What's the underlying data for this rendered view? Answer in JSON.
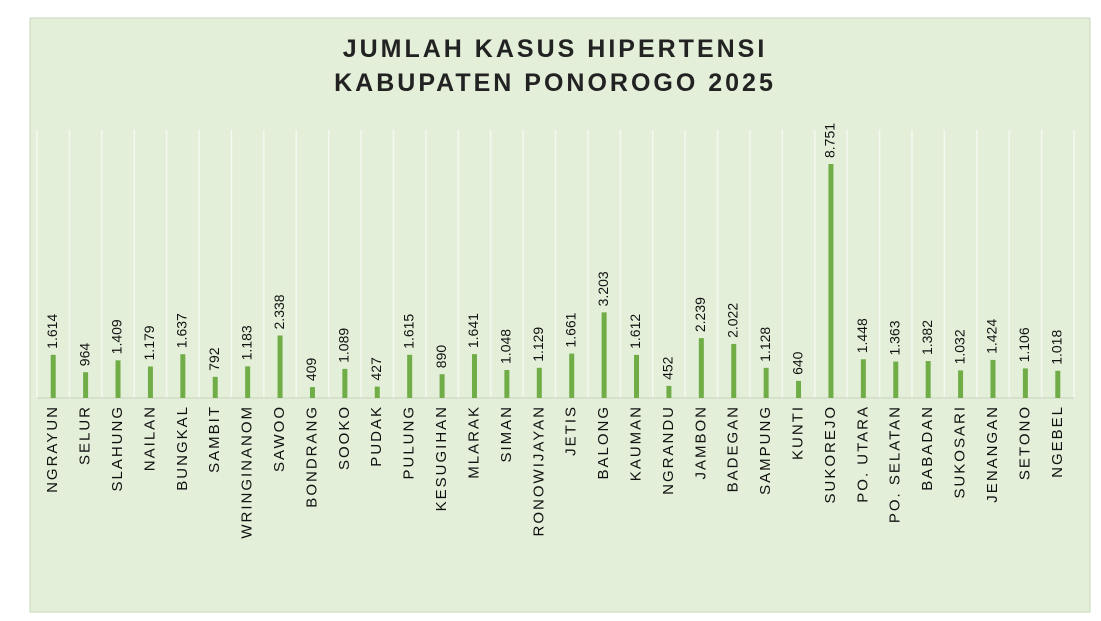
{
  "chart_data": {
    "type": "bar",
    "title": [
      "JUMLAH KASUS HIPERTENSI",
      "KABUPATEN PONOROGO 2025"
    ],
    "categories": [
      "NGRAYUN",
      "SELUR",
      "SLAHUNG",
      "NAILAN",
      "BUNGKAL",
      "SAMBIT",
      "WRINGINANOM",
      "SAWOO",
      "BONDRANG",
      "SOOKO",
      "PUDAK",
      "PULUNG",
      "KESUGIHAN",
      "MLARAK",
      "SIMAN",
      "RONOWIJAYAN",
      "JETIS",
      "BALONG",
      "KAUMAN",
      "NGRANDU",
      "JAMBON",
      "BADEGAN",
      "SAMPUNG",
      "KUNTI",
      "SUKOREJO",
      "PO. UTARA",
      "PO. SELATAN",
      "BABADAN",
      "SUKOSARI",
      "JENANGAN",
      "SETONO",
      "NGEBEL"
    ],
    "values": [
      1614,
      964,
      1409,
      1179,
      1637,
      792,
      1183,
      2338,
      409,
      1089,
      427,
      1615,
      890,
      1641,
      1048,
      1129,
      1661,
      3203,
      1612,
      452,
      2239,
      2022,
      1128,
      640,
      8751,
      1448,
      1363,
      1382,
      1032,
      1424,
      1106,
      1018
    ],
    "value_labels": [
      "1.614",
      "964",
      "1.409",
      "1.179",
      "1.637",
      "792",
      "1.183",
      "2.338",
      "409",
      "1.089",
      "427",
      "1.615",
      "890",
      "1.641",
      "1.048",
      "1.129",
      "1.661",
      "3.203",
      "1.612",
      "452",
      "2.239",
      "2.022",
      "1.128",
      "640",
      "8.751",
      "1.448",
      "1.363",
      "1.382",
      "1.032",
      "1.424",
      "1.106",
      "1.018"
    ],
    "color": "#70ad47"
  }
}
